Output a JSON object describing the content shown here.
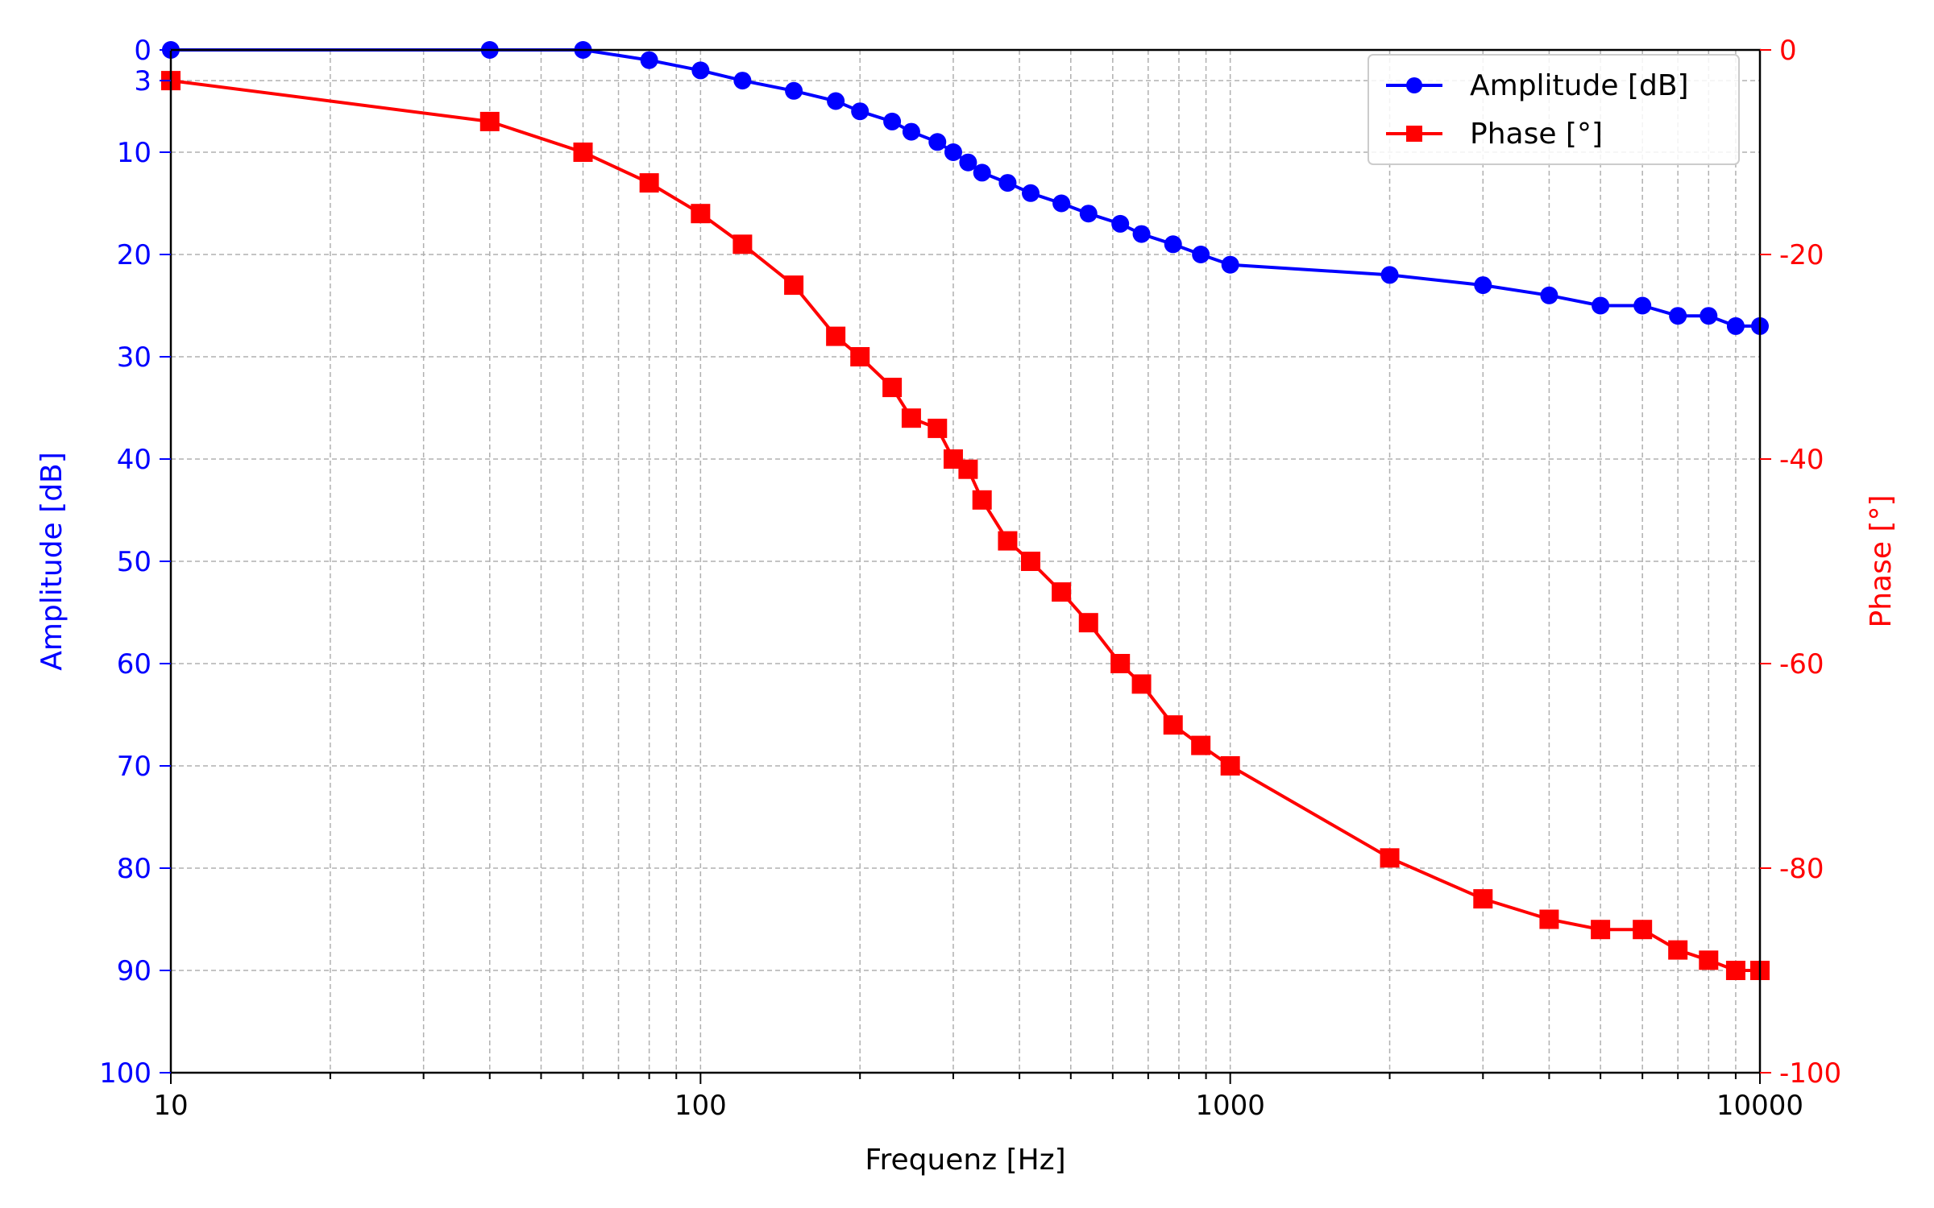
{
  "chart_data": {
    "type": "line",
    "title": "",
    "xlabel": "Frequenz [Hz]",
    "xscale": "log",
    "xlim": [
      10,
      10000
    ],
    "x_ticks": [
      "10",
      "100",
      "1000",
      "10000"
    ],
    "y_left": {
      "label": "Amplitude [dB]",
      "range": [
        0,
        100
      ],
      "inverted": true,
      "ticks": [
        "0",
        "3",
        "10",
        "20",
        "30",
        "40",
        "50",
        "60",
        "70",
        "80",
        "90",
        "100"
      ],
      "color": "#0000ff"
    },
    "y_right": {
      "label": "Phase [°]",
      "range": [
        -100,
        0
      ],
      "ticks": [
        "0",
        "-20",
        "-40",
        "-60",
        "-80",
        "-100"
      ],
      "color": "#ff0000"
    },
    "grid": true,
    "legend_position": "top-right",
    "series": [
      {
        "name": "Amplitude [dB]",
        "axis": "left",
        "color": "#0000ff",
        "marker": "circle",
        "x": [
          10,
          40,
          60,
          80,
          100,
          120,
          150,
          180,
          200,
          230,
          250,
          280,
          300,
          320,
          340,
          380,
          420,
          480,
          540,
          620,
          680,
          780,
          880,
          1000,
          2000,
          3000,
          4000,
          5000,
          6000,
          7000,
          8000,
          9000,
          10000
        ],
        "values": [
          0,
          0,
          0,
          1,
          2,
          3,
          4,
          5,
          6,
          7,
          8,
          9,
          10,
          11,
          12,
          13,
          14,
          15,
          16,
          17,
          18,
          19,
          20,
          21,
          22,
          23,
          24,
          25,
          25,
          26,
          26,
          27,
          27
        ]
      },
      {
        "name": "Phase [°]",
        "axis": "right",
        "color": "#ff0000",
        "marker": "square",
        "x": [
          10,
          40,
          60,
          80,
          100,
          120,
          150,
          180,
          200,
          230,
          250,
          280,
          300,
          320,
          340,
          380,
          420,
          480,
          540,
          620,
          680,
          780,
          880,
          1000,
          2000,
          3000,
          4000,
          5000,
          6000,
          7000,
          8000,
          9000,
          10000
        ],
        "values": [
          -3,
          -7,
          -10,
          -13,
          -16,
          -19,
          -23,
          -28,
          -30,
          -33,
          -36,
          -37,
          -40,
          -41,
          -44,
          -48,
          -50,
          -53,
          -56,
          -60,
          -62,
          -66,
          -68,
          -70,
          -79,
          -83,
          -85,
          -86,
          -86,
          -88,
          -89,
          -90,
          -90
        ]
      }
    ]
  }
}
